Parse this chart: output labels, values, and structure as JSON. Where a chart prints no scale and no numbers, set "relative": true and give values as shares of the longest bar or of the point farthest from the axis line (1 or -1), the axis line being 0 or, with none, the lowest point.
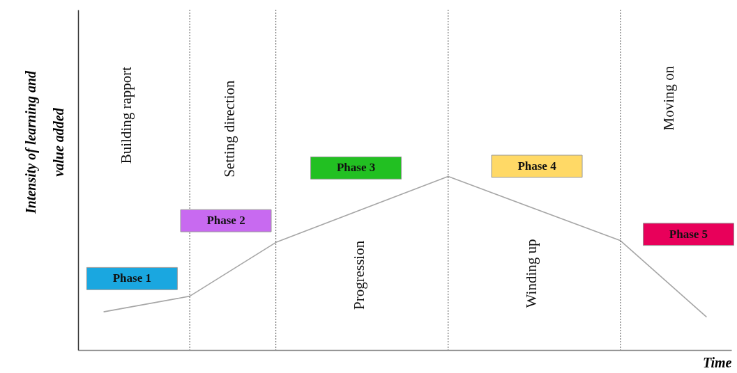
{
  "chart_data": {
    "type": "line",
    "relative": true,
    "ylabel": "Intensity of learning and value added",
    "xlabel": "Time",
    "categories": [
      null,
      null,
      null,
      null,
      null,
      null,
      null,
      null
    ],
    "tick_labels": false,
    "grid": "x",
    "series": [
      {
        "color": "#a6a6a6",
        "values": [
          0.22,
          0.31,
          0.62,
          null,
          1,
          null,
          0.63,
          0.19
        ]
      }
    ],
    "annotations": [
      "Building rapport",
      "Setting direction",
      "Progression",
      "Winding up",
      "Moving on",
      "Phase 1",
      "Phase 2",
      "Phase 3",
      "Phase 4",
      "Phase 5"
    ]
  }
}
